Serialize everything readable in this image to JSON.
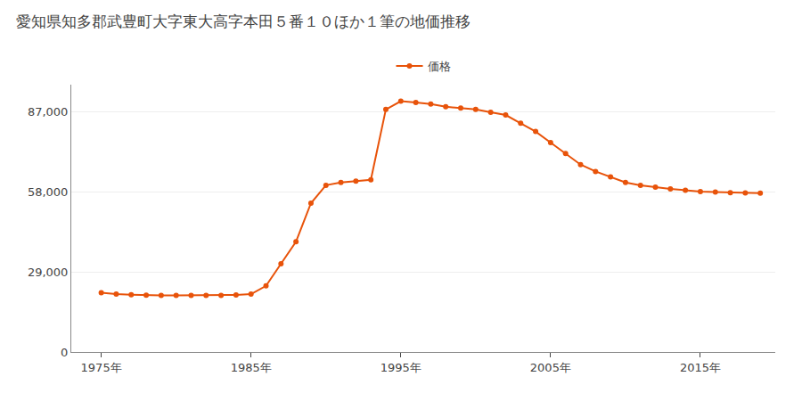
{
  "chart_data": {
    "type": "line",
    "title": "愛知県知多郡武豊町大字東大高字本田５番１０ほか１筆の地価推移",
    "x": [
      1975,
      1976,
      1977,
      1978,
      1979,
      1980,
      1981,
      1982,
      1983,
      1984,
      1985,
      1986,
      1987,
      1988,
      1989,
      1990,
      1991,
      1992,
      1993,
      1994,
      1995,
      1996,
      1997,
      1998,
      1999,
      2000,
      2001,
      2002,
      2003,
      2004,
      2005,
      2006,
      2007,
      2008,
      2009,
      2010,
      2011,
      2012,
      2013,
      2014,
      2015,
      2016,
      2017,
      2018,
      2019
    ],
    "series": [
      {
        "name": "価格",
        "color": "#e8530a",
        "marker": "circle",
        "values": [
          21500,
          21000,
          20800,
          20600,
          20500,
          20500,
          20500,
          20500,
          20500,
          20700,
          21000,
          24000,
          32000,
          40000,
          54000,
          60500,
          61500,
          62000,
          62500,
          88000,
          91000,
          90500,
          90000,
          89000,
          88500,
          88000,
          87000,
          86000,
          83000,
          80000,
          76000,
          72000,
          68000,
          65500,
          63500,
          61500,
          60500,
          59800,
          59200,
          58700,
          58200,
          58000,
          57800,
          57700,
          57600
        ]
      }
    ],
    "xlim": [
      1973,
      2020
    ],
    "xticks": [
      {
        "value": 1975,
        "label": "1975年"
      },
      {
        "value": 1985,
        "label": "1985年"
      },
      {
        "value": 1995,
        "label": "1995年"
      },
      {
        "value": 2005,
        "label": "2005年"
      },
      {
        "value": 2015,
        "label": "2015年"
      }
    ],
    "ylim": [
      0,
      97000
    ],
    "yticks": [
      0,
      {
        "value": 29000,
        "label": "29,000"
      },
      {
        "value": 58000,
        "label": "58,000"
      },
      {
        "value": 87000,
        "label": "87,000"
      }
    ],
    "grid": true,
    "legend": "top"
  }
}
